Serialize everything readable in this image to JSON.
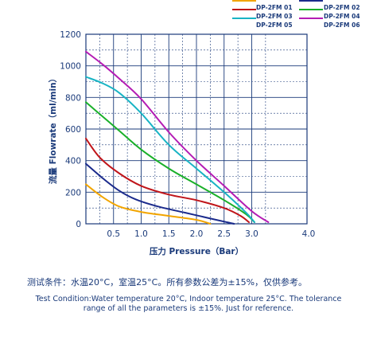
{
  "chart_data": {
    "type": "line",
    "xlabel": "压力 Pressure（Bar）",
    "ylabel": "流量 Flowrate（ml/min）",
    "xlim": [
      0,
      4.0
    ],
    "ylim": [
      0,
      1200
    ],
    "xticks": [
      "0.5",
      "1.0",
      "1.5",
      "2.0",
      "2.5",
      "3.0",
      "4.0"
    ],
    "yticks": [
      "0",
      "200",
      "400",
      "600",
      "800",
      "1000",
      "1200"
    ],
    "grid": true,
    "legend_position": "top-right",
    "series": [
      {
        "name": "DP-2FM 01",
        "color": "#f2a500",
        "points": [
          [
            0,
            250
          ],
          [
            0.3,
            170
          ],
          [
            0.6,
            110
          ],
          [
            1.0,
            75
          ],
          [
            1.5,
            50
          ],
          [
            2.0,
            25
          ],
          [
            2.25,
            0
          ]
        ]
      },
      {
        "name": "DP-2FM 02",
        "color": "#1a2a8c",
        "points": [
          [
            0,
            380
          ],
          [
            0.3,
            290
          ],
          [
            0.6,
            210
          ],
          [
            0.9,
            155
          ],
          [
            1.3,
            110
          ],
          [
            1.8,
            70
          ],
          [
            2.3,
            30
          ],
          [
            2.55,
            10
          ],
          [
            2.68,
            0
          ]
        ]
      },
      {
        "name": "DP-2FM 03",
        "color": "#c0151a",
        "points": [
          [
            0,
            540
          ],
          [
            0.25,
            420
          ],
          [
            0.6,
            320
          ],
          [
            1.0,
            240
          ],
          [
            1.5,
            185
          ],
          [
            2.0,
            150
          ],
          [
            2.5,
            100
          ],
          [
            2.8,
            50
          ],
          [
            2.95,
            10
          ]
        ]
      },
      {
        "name": "DP-2FM 04",
        "color": "#1ab02a",
        "points": [
          [
            0,
            770
          ],
          [
            0.3,
            680
          ],
          [
            0.6,
            590
          ],
          [
            1.0,
            470
          ],
          [
            1.5,
            350
          ],
          [
            2.0,
            250
          ],
          [
            2.5,
            150
          ],
          [
            2.9,
            60
          ],
          [
            3.05,
            10
          ]
        ]
      },
      {
        "name": "DP-2FM 05",
        "color": "#18b4c4",
        "points": [
          [
            0,
            930
          ],
          [
            0.3,
            890
          ],
          [
            0.6,
            830
          ],
          [
            1.0,
            700
          ],
          [
            1.5,
            500
          ],
          [
            2.0,
            350
          ],
          [
            2.5,
            200
          ],
          [
            2.9,
            70
          ],
          [
            3.05,
            10
          ]
        ]
      },
      {
        "name": "DP-2FM 06",
        "color": "#b41cb4",
        "points": [
          [
            0,
            1090
          ],
          [
            0.3,
            1010
          ],
          [
            0.6,
            920
          ],
          [
            1.0,
            790
          ],
          [
            1.5,
            580
          ],
          [
            2.0,
            400
          ],
          [
            2.5,
            240
          ],
          [
            3.0,
            80
          ],
          [
            3.3,
            10
          ]
        ]
      }
    ]
  },
  "notes": {
    "cn": "测试条件：水温20°C，室温25°C。所有参数公差为±15%，仅供参考。",
    "en_line1": "Test Condition:Water temperature 20°C, Indoor temperature 25°C. The tolerance",
    "en_line2": "range of all the parameters is ±15%. Just for reference."
  }
}
